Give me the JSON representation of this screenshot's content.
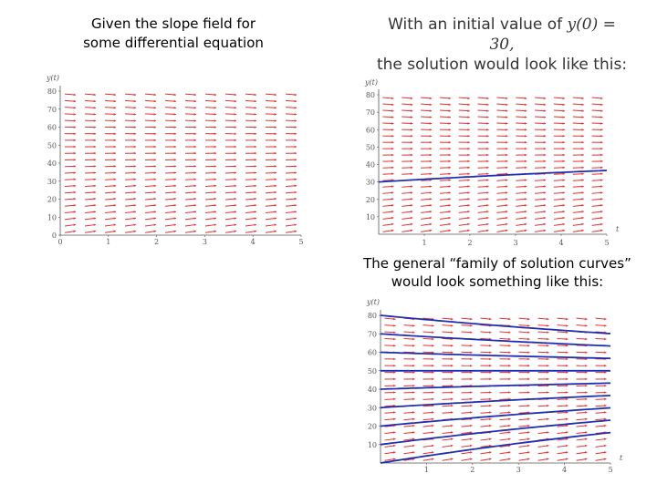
{
  "captions": {
    "left_line1": "Given the slope field for",
    "left_line2": "some differential equation",
    "right_line1_prefix": "With an initial value of ",
    "right_line1_math": "y(0) = 30,",
    "right_line2": "the solution would look like this:",
    "family_line1": "The general “family of solution curves”",
    "family_line2": "would look something like this:"
  },
  "colors": {
    "arrow": "#e53030",
    "curve": "#1f2fb0",
    "axis": "#555555"
  },
  "chart_data": [
    {
      "type": "slope_field",
      "ylabel": "y(t)",
      "xlabel": "",
      "xlim": [
        0,
        5
      ],
      "ylim": [
        0,
        80
      ],
      "xticks": [
        "0",
        "1",
        "2",
        "3",
        "4",
        "5"
      ],
      "yticks": [
        "0",
        "10",
        "20",
        "30",
        "40",
        "50",
        "60",
        "70",
        "80"
      ],
      "equilibrium_y": 50,
      "rate": 0.08,
      "curves": []
    },
    {
      "type": "slope_field",
      "ylabel": "y(t)",
      "xlabel": "t",
      "xlim": [
        0,
        5
      ],
      "ylim": [
        0,
        80
      ],
      "xticks": [
        "1",
        "2",
        "3",
        "4",
        "5"
      ],
      "yticks": [
        "10",
        "20",
        "30",
        "40",
        "50",
        "60",
        "70",
        "80"
      ],
      "equilibrium_y": 50,
      "rate": 0.08,
      "curves": [
        {
          "y0": 30
        }
      ]
    },
    {
      "type": "slope_field",
      "ylabel": "y(t)",
      "xlabel": "t",
      "xlim": [
        0,
        5
      ],
      "ylim": [
        0,
        80
      ],
      "xticks": [
        "1",
        "2",
        "3",
        "4",
        "5"
      ],
      "yticks": [
        "10",
        "20",
        "30",
        "40",
        "50",
        "60",
        "70",
        "80"
      ],
      "equilibrium_y": 50,
      "rate": 0.08,
      "curves": [
        {
          "y0": 80
        },
        {
          "y0": 70
        },
        {
          "y0": 60
        },
        {
          "y0": 50
        },
        {
          "y0": 40
        },
        {
          "y0": 30
        },
        {
          "y0": 20
        },
        {
          "y0": 10
        },
        {
          "y0": 0
        }
      ]
    }
  ]
}
